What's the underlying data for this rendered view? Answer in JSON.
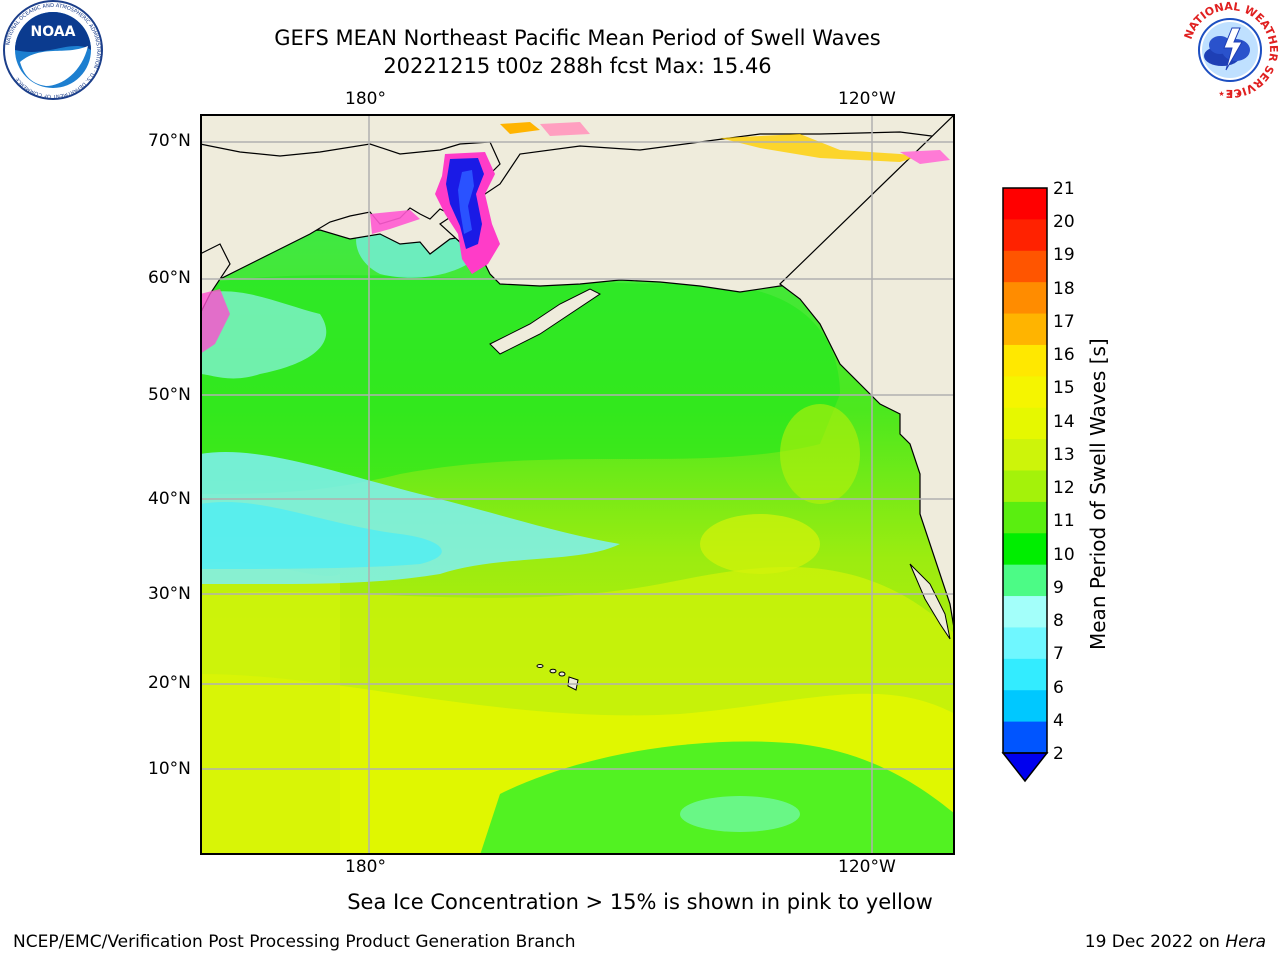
{
  "header": {
    "title_line1": "GEFS MEAN Northeast Pacific Mean Period of Swell Waves",
    "title_line2": "20221215 t00z 288h fcst   Max: 15.46"
  },
  "logos": {
    "left": {
      "text": "NOAA",
      "ring_text": "NATIONAL OCEANIC AND ATMOSPHERIC ADMINISTRATION · U.S. DEPARTMENT OF COMMERCE"
    },
    "right": {
      "ring_text": "NATIONAL WEATHER SERVICE"
    }
  },
  "map": {
    "lon_labels": [
      "180°",
      "120°W"
    ],
    "lat_labels": [
      "70°N",
      "60°N",
      "50°N",
      "40°N",
      "30°N",
      "20°N",
      "10°N"
    ],
    "colors": {
      "land": "#efecdc",
      "grid": "#b0b0b0",
      "coast": "#000000"
    }
  },
  "colorbar": {
    "label": "Mean Period of Swell Waves [s]",
    "ticks": [
      "2",
      "4",
      "6",
      "7",
      "8",
      "9",
      "10",
      "11",
      "12",
      "13",
      "14",
      "15",
      "16",
      "17",
      "18",
      "19",
      "20",
      "21"
    ],
    "colors": [
      "#0055ff",
      "#00c8ff",
      "#33ecff",
      "#6ff7ff",
      "#a3fffa",
      "#4cfb86",
      "#00ee00",
      "#5aee10",
      "#a4f20a",
      "#cdf40a",
      "#e6f800",
      "#f5f500",
      "#ffe800",
      "#ffb400",
      "#ff8c00",
      "#ff5500",
      "#ff2200",
      "#ff0000"
    ],
    "underflow_color": "#0000ee"
  },
  "notes": {
    "sea_ice": "Sea Ice Concentration > 15% is shown in pink to yellow",
    "credit": "NCEP/EMC/Verification Post Processing Product Generation Branch",
    "date": "19 Dec 2022 on ",
    "machine": "Hera"
  }
}
